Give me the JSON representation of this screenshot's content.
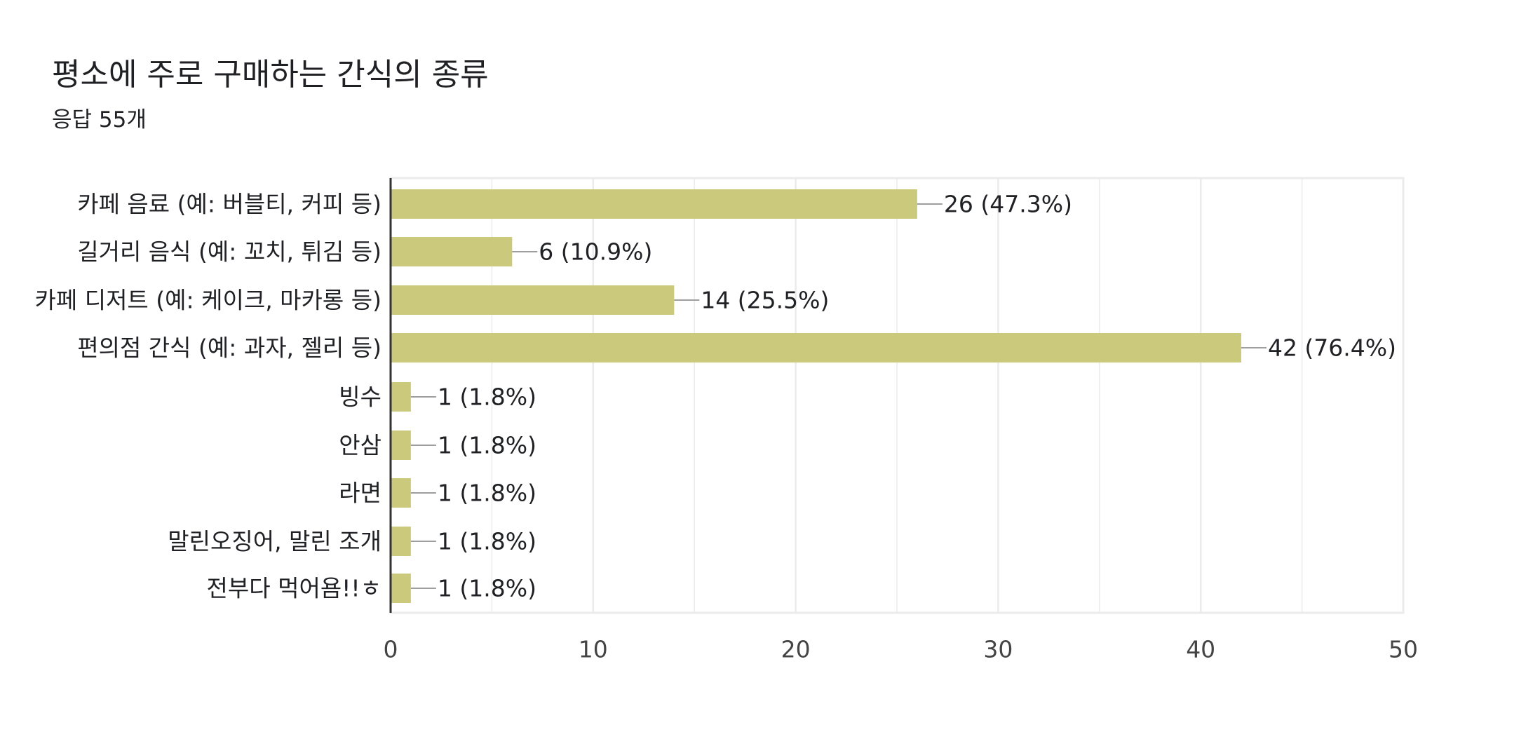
{
  "header": {
    "title": "평소에 주로 구매하는 간식의 종류",
    "subtitle": "응답 55개"
  },
  "colors": {
    "bar": "#cbca7c",
    "grid": "#ebebeb",
    "axis": "#333333",
    "leader": "#9e9e9e",
    "text": "#202124",
    "tick_text": "#444444"
  },
  "chart_data": {
    "type": "bar",
    "orientation": "horizontal",
    "categories": [
      "카페 음료 (예: 버블티, 커피 등)",
      "길거리 음식 (예: 꼬치, 튀김 등)",
      "카페 디저트 (예: 케이크, 마카롱 등)",
      "편의점 간식 (예: 과자, 젤리 등)",
      "빙수",
      "안삼",
      "라면",
      "말린오징어, 말린 조개",
      "전부다 먹어욤!!ㅎ"
    ],
    "values": [
      26,
      6,
      14,
      42,
      1,
      1,
      1,
      1,
      1
    ],
    "data_labels": [
      "26 (47.3%)",
      "6 (10.9%)",
      "14 (25.5%)",
      "42 (76.4%)",
      "1 (1.8%)",
      "1 (1.8%)",
      "1 (1.8%)",
      "1 (1.8%)",
      "1 (1.8%)"
    ],
    "xlim": [
      0,
      50
    ],
    "xticks": [
      0,
      10,
      20,
      30,
      40,
      50
    ],
    "grid": true,
    "legend": "none"
  }
}
